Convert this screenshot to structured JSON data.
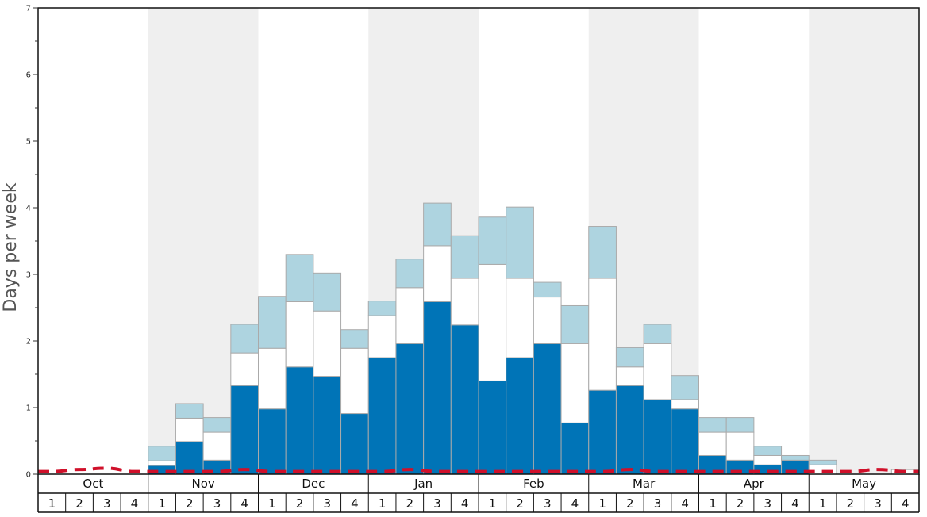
{
  "chart_data": {
    "type": "bar",
    "stacked": true,
    "ylabel": "Days per week",
    "ylim": [
      0,
      7
    ],
    "yticks": [
      0,
      1,
      2,
      3,
      4,
      5,
      6,
      7
    ],
    "grid": false,
    "months": [
      "Oct",
      "Nov",
      "Dec",
      "Jan",
      "Feb",
      "Mar",
      "Apr",
      "May"
    ],
    "weeks": [
      "1",
      "2",
      "3",
      "4"
    ],
    "shaded_months": [
      "Nov",
      "Jan",
      "Mar",
      "May"
    ],
    "colors": {
      "bottom": "#0074b7",
      "middle": "#ffffff",
      "top": "#aed4e0",
      "bar_edge": "#aaaaaa",
      "shade": "#efefef",
      "line": "#d0102a"
    },
    "series": [
      {
        "values": [
          0,
          0,
          0,
          0,
          0.13,
          0.49,
          0.21,
          1.33,
          0.98,
          1.61,
          1.47,
          0.91,
          1.75,
          1.96,
          2.59,
          2.24,
          1.4,
          1.75,
          1.96,
          0.77,
          1.26,
          1.33,
          1.12,
          0.98,
          0.28,
          0.21,
          0.14,
          0.21,
          0,
          0,
          0,
          0
        ]
      },
      {
        "values": [
          0,
          0,
          0,
          0,
          0.07,
          0.35,
          0.42,
          0.49,
          0.91,
          0.98,
          0.98,
          0.98,
          0.63,
          0.84,
          0.84,
          0.7,
          1.75,
          1.19,
          0.7,
          1.19,
          1.68,
          0.28,
          0.84,
          0.14,
          0.35,
          0.42,
          0.14,
          0,
          0.14,
          0,
          0,
          0.07
        ]
      },
      {
        "values": [
          0,
          0,
          0,
          0,
          0.22,
          0.22,
          0.22,
          0.43,
          0.78,
          0.71,
          0.57,
          0.28,
          0.22,
          0.43,
          0.64,
          0.64,
          0.71,
          1.07,
          0.22,
          0.57,
          0.78,
          0.29,
          0.29,
          0.36,
          0.22,
          0.22,
          0.14,
          0.07,
          0.07,
          0,
          0,
          0
        ]
      }
    ],
    "line": {
      "style": "dashed",
      "values": [
        0.04,
        0.07,
        0.09,
        0.04,
        0.04,
        0.04,
        0.04,
        0.07,
        0.04,
        0.04,
        0.04,
        0.04,
        0.04,
        0.07,
        0.04,
        0.04,
        0.04,
        0.04,
        0.04,
        0.04,
        0.04,
        0.07,
        0.04,
        0.04,
        0.04,
        0.04,
        0.04,
        0.04,
        0.04,
        0.04,
        0.07,
        0.04
      ]
    }
  }
}
